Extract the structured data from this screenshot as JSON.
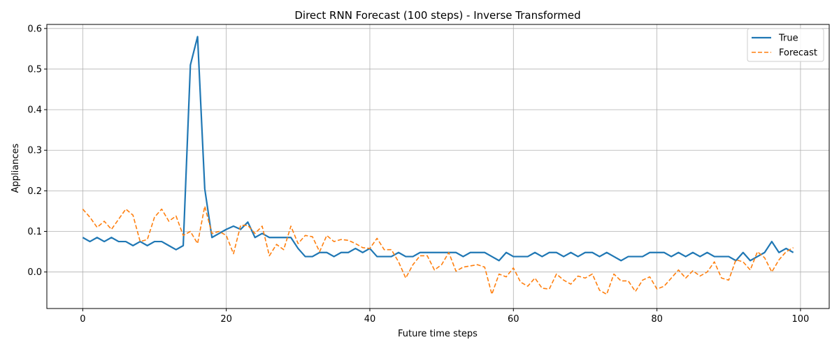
{
  "chart_data": {
    "type": "line",
    "title": "Direct RNN Forecast (100 steps) - Inverse Transformed",
    "xlabel": "Future time steps",
    "ylabel": "Appliances",
    "xlim": [
      -5,
      104
    ],
    "ylim": [
      -0.09,
      0.61
    ],
    "xticks": [
      0,
      20,
      40,
      60,
      80,
      100
    ],
    "xtick_labels": [
      "0",
      "20",
      "40",
      "60",
      "80",
      "100"
    ],
    "yticks": [
      0.0,
      0.1,
      0.2,
      0.3,
      0.4,
      0.5,
      0.6
    ],
    "ytick_labels": [
      "0.0",
      "0.1",
      "0.2",
      "0.3",
      "0.4",
      "0.5",
      "0.6"
    ],
    "grid": true,
    "legend_position": "top-right",
    "x": [
      0,
      1,
      2,
      3,
      4,
      5,
      6,
      7,
      8,
      9,
      10,
      11,
      12,
      13,
      14,
      15,
      16,
      17,
      18,
      19,
      20,
      21,
      22,
      23,
      24,
      25,
      26,
      27,
      28,
      29,
      30,
      31,
      32,
      33,
      34,
      35,
      36,
      37,
      38,
      39,
      40,
      41,
      42,
      43,
      44,
      45,
      46,
      47,
      48,
      49,
      50,
      51,
      52,
      53,
      54,
      55,
      56,
      57,
      58,
      59,
      60,
      61,
      62,
      63,
      64,
      65,
      66,
      67,
      68,
      69,
      70,
      71,
      72,
      73,
      74,
      75,
      76,
      77,
      78,
      79,
      80,
      81,
      82,
      83,
      84,
      85,
      86,
      87,
      88,
      89,
      90,
      91,
      92,
      93,
      94,
      95,
      96,
      97,
      98,
      99
    ],
    "series": [
      {
        "name": "True",
        "color": "#1f77b4",
        "style": "solid",
        "values": [
          0.085,
          0.075,
          0.085,
          0.075,
          0.085,
          0.075,
          0.075,
          0.065,
          0.075,
          0.065,
          0.075,
          0.075,
          0.065,
          0.055,
          0.065,
          0.51,
          0.58,
          0.205,
          0.085,
          0.095,
          0.105,
          0.113,
          0.105,
          0.123,
          0.085,
          0.095,
          0.085,
          0.085,
          0.085,
          0.085,
          0.058,
          0.038,
          0.038,
          0.048,
          0.048,
          0.038,
          0.048,
          0.048,
          0.058,
          0.048,
          0.058,
          0.038,
          0.038,
          0.038,
          0.048,
          0.038,
          0.038,
          0.048,
          0.048,
          0.048,
          0.048,
          0.048,
          0.048,
          0.038,
          0.048,
          0.048,
          0.048,
          0.038,
          0.028,
          0.048,
          0.038,
          0.038,
          0.038,
          0.048,
          0.038,
          0.048,
          0.048,
          0.038,
          0.048,
          0.038,
          0.048,
          0.048,
          0.038,
          0.048,
          0.038,
          0.028,
          0.038,
          0.038,
          0.038,
          0.048,
          0.048,
          0.048,
          0.038,
          0.048,
          0.038,
          0.048,
          0.038,
          0.048,
          0.038,
          0.038,
          0.038,
          0.028,
          0.048,
          0.028,
          0.038,
          0.048,
          0.075,
          0.048,
          0.058,
          0.048
        ]
      },
      {
        "name": "Forecast",
        "color": "#ff7f0e",
        "style": "dashed",
        "values": [
          0.155,
          0.135,
          0.11,
          0.125,
          0.105,
          0.13,
          0.155,
          0.14,
          0.075,
          0.08,
          0.135,
          0.155,
          0.125,
          0.138,
          0.09,
          0.1,
          0.07,
          0.162,
          0.095,
          0.1,
          0.09,
          0.045,
          0.115,
          0.115,
          0.095,
          0.113,
          0.04,
          0.068,
          0.055,
          0.113,
          0.07,
          0.09,
          0.087,
          0.05,
          0.09,
          0.075,
          0.08,
          0.078,
          0.07,
          0.06,
          0.058,
          0.083,
          0.055,
          0.055,
          0.025,
          -0.015,
          0.018,
          0.04,
          0.04,
          0.005,
          0.018,
          0.048,
          0.002,
          0.012,
          0.015,
          0.018,
          0.012,
          -0.055,
          -0.005,
          -0.012,
          0.01,
          -0.025,
          -0.035,
          -0.015,
          -0.04,
          -0.042,
          -0.005,
          -0.02,
          -0.03,
          -0.01,
          -0.015,
          -0.005,
          -0.045,
          -0.055,
          -0.005,
          -0.022,
          -0.022,
          -0.048,
          -0.02,
          -0.012,
          -0.042,
          -0.035,
          -0.015,
          0.005,
          -0.015,
          0.003,
          -0.01,
          0.0,
          0.025,
          -0.015,
          -0.02,
          0.03,
          0.025,
          0.005,
          0.05,
          0.035,
          0.0,
          0.03,
          0.05,
          0.06
        ]
      }
    ]
  }
}
